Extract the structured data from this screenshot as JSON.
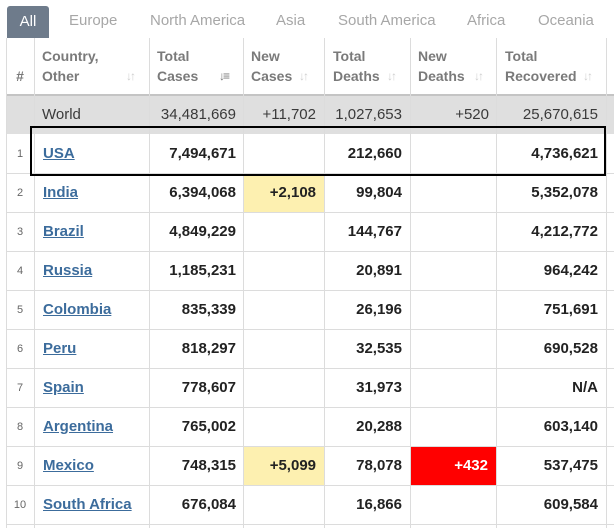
{
  "tabs": [
    "All",
    "Europe",
    "North America",
    "Asia",
    "South America",
    "Africa",
    "Oceania"
  ],
  "headers": {
    "idx": "#",
    "country": [
      "Country,",
      "Other"
    ],
    "total_cases": [
      "Total",
      "Cases"
    ],
    "new_cases": [
      "New",
      "Cases"
    ],
    "total_deaths": [
      "Total",
      "Deaths"
    ],
    "new_deaths": [
      "New",
      "Deaths"
    ],
    "total_recovered": [
      "Total",
      "Recovered"
    ]
  },
  "world": {
    "name": "World",
    "total_cases": "34,481,669",
    "new_cases": "+11,702",
    "total_deaths": "1,027,653",
    "new_deaths": "+520",
    "total_recovered": "25,670,615"
  },
  "rows": [
    {
      "idx": "1",
      "country": "USA",
      "total_cases": "7,494,671",
      "new_cases": "",
      "total_deaths": "212,660",
      "new_deaths": "",
      "total_recovered": "4,736,621"
    },
    {
      "idx": "2",
      "country": "India",
      "total_cases": "6,394,068",
      "new_cases": "+2,108",
      "total_deaths": "99,804",
      "new_deaths": "",
      "total_recovered": "5,352,078"
    },
    {
      "idx": "3",
      "country": "Brazil",
      "total_cases": "4,849,229",
      "new_cases": "",
      "total_deaths": "144,767",
      "new_deaths": "",
      "total_recovered": "4,212,772"
    },
    {
      "idx": "4",
      "country": "Russia",
      "total_cases": "1,185,231",
      "new_cases": "",
      "total_deaths": "20,891",
      "new_deaths": "",
      "total_recovered": "964,242"
    },
    {
      "idx": "5",
      "country": "Colombia",
      "total_cases": "835,339",
      "new_cases": "",
      "total_deaths": "26,196",
      "new_deaths": "",
      "total_recovered": "751,691"
    },
    {
      "idx": "6",
      "country": "Peru",
      "total_cases": "818,297",
      "new_cases": "",
      "total_deaths": "32,535",
      "new_deaths": "",
      "total_recovered": "690,528"
    },
    {
      "idx": "7",
      "country": "Spain",
      "total_cases": "778,607",
      "new_cases": "",
      "total_deaths": "31,973",
      "new_deaths": "",
      "total_recovered": "N/A"
    },
    {
      "idx": "8",
      "country": "Argentina",
      "total_cases": "765,002",
      "new_cases": "",
      "total_deaths": "20,288",
      "new_deaths": "",
      "total_recovered": "603,140"
    },
    {
      "idx": "9",
      "country": "Mexico",
      "total_cases": "748,315",
      "new_cases": "+5,099",
      "total_deaths": "78,078",
      "new_deaths": "+432",
      "total_recovered": "537,475"
    },
    {
      "idx": "10",
      "country": "South Africa",
      "total_cases": "676,084",
      "new_cases": "",
      "total_deaths": "16,866",
      "new_deaths": "",
      "total_recovered": "609,584"
    }
  ],
  "colors": {
    "active_tab": "#6e7b8b",
    "new_cases_highlight": "#fdf0b0",
    "new_deaths_highlight": "#ff0000",
    "country_link": "#3c6c9c",
    "world_row": "#dfdfdf"
  }
}
